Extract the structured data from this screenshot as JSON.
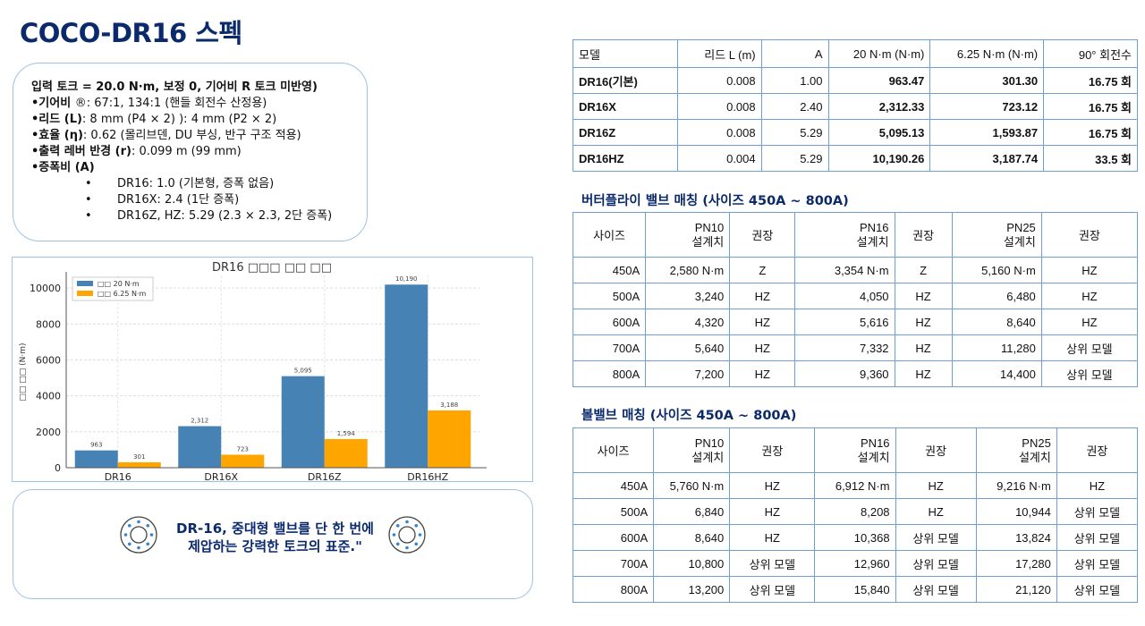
{
  "title": "COCO-DR16 스펙",
  "spec": {
    "heading": "입력 토크 = 20.0 N·m, 보정 0, 기어비 R 토크 미반영)",
    "lines": [
      {
        "label": "•기어비 ",
        "rest": "®: 67:1, 134:1 (핸들 회전수 산정용)"
      },
      {
        "label": "•리드 (L)",
        "rest": ": 8 mm (P4 × 2) ): 4 mm (P2 × 2)"
      },
      {
        "label": "•효율 (η)",
        "rest": ": 0.62 (몰리브덴, DU 부싱, 반구 구조 적용)"
      },
      {
        "label": "•출력 레버 반경 (r)",
        "rest": ": 0.099 m (99 mm)"
      },
      {
        "label": "•증폭비 (A)",
        "rest": ""
      }
    ],
    "sub": [
      "DR16: 1.0 (기본형, 증폭 없음)",
      "DR16X: 2.4 (1단 증폭)",
      "DR16Z, HZ: 5.29 (2.3 × 2.3, 2단 증폭)"
    ]
  },
  "chart_data": {
    "type": "bar",
    "title": "DR16 □□□ □□ □□",
    "ylabel": "□□ □□ (N·m)",
    "xlabel": "",
    "categories": [
      "DR16",
      "DR16X",
      "DR16Z",
      "DR16HZ"
    ],
    "series": [
      {
        "name": "□□ 20 N·m",
        "color": "#4682b4",
        "values": [
          963,
          2312,
          5095,
          10190
        ],
        "labels": [
          "963",
          "2,312",
          "5,095",
          "10,190"
        ]
      },
      {
        "name": "□□ 6.25 N·m",
        "color": "#ffa500",
        "values": [
          301,
          723,
          1594,
          3188
        ],
        "labels": [
          "301",
          "723",
          "1,594",
          "3,188"
        ]
      }
    ],
    "yticks": [
      0,
      2000,
      4000,
      6000,
      8000,
      10000
    ],
    "ylim": [
      0,
      10700
    ],
    "grid": true,
    "legend": "top-left"
  },
  "quote": {
    "line1": "DR-16, 중대형 밸브를 단 한 번에",
    "line2": "제압하는 강력한 토크의 표준.\""
  },
  "table1": {
    "headers": [
      "모델",
      "리드 L (m)",
      "A",
      "20 N·m (N·m)",
      "6.25 N·m (N·m)",
      "90° 회전수"
    ],
    "rows": [
      [
        "DR16(기본)",
        "0.008",
        "1.00",
        "963.47",
        "301.30",
        "16.75 회"
      ],
      [
        "DR16X",
        "0.008",
        "2.40",
        "2,312.33",
        "723.12",
        "16.75 회"
      ],
      [
        "DR16Z",
        "0.008",
        "5.29",
        "5,095.13",
        "1,593.87",
        "16.75 회"
      ],
      [
        "DR16HZ",
        "0.004",
        "5.29",
        "10,190.26",
        "3,187.74",
        "33.5 회"
      ]
    ]
  },
  "butterfly": {
    "title": "버터플라이 밸브 매칭 (사이즈 450A ~ 800A)",
    "headers": [
      "사이즈",
      "PN10\n설계치",
      "권장",
      "PN16\n설계치",
      "권장",
      "PN25\n설계치",
      "권장"
    ],
    "rows": [
      [
        "450A",
        "2,580 N·m",
        "Z",
        "3,354 N·m",
        "Z",
        "5,160 N·m",
        "HZ"
      ],
      [
        "500A",
        "3,240",
        "HZ",
        "4,050",
        "HZ",
        "6,480",
        "HZ"
      ],
      [
        "600A",
        "4,320",
        "HZ",
        "5,616",
        "HZ",
        "8,640",
        "HZ"
      ],
      [
        "700A",
        "5,640",
        "HZ",
        "7,332",
        "HZ",
        "11,280",
        "상위 모델"
      ],
      [
        "800A",
        "7,200",
        "HZ",
        "9,360",
        "HZ",
        "14,400",
        "상위 모델"
      ]
    ]
  },
  "ball": {
    "title": "볼밸브 매칭 (사이즈 450A ~ 800A)",
    "headers": [
      "사이즈",
      "PN10\n설계치",
      "권장",
      "PN16\n설계치",
      "권장",
      "PN25\n설계치",
      "권장"
    ],
    "rows": [
      [
        "450A",
        "5,760 N·m",
        "HZ",
        "6,912 N·m",
        "HZ",
        "9,216 N·m",
        "HZ"
      ],
      [
        "500A",
        "6,840",
        "HZ",
        "8,208",
        "HZ",
        "10,944",
        "상위 모델"
      ],
      [
        "600A",
        "8,640",
        "HZ",
        "10,368",
        "상위 모델",
        "13,824",
        "상위 모델"
      ],
      [
        "700A",
        "10,800",
        "상위 모델",
        "12,960",
        "상위 모델",
        "17,280",
        "상위 모델"
      ],
      [
        "800A",
        "13,200",
        "상위 모델",
        "15,840",
        "상위 모델",
        "21,120",
        "상위 모델"
      ]
    ]
  }
}
